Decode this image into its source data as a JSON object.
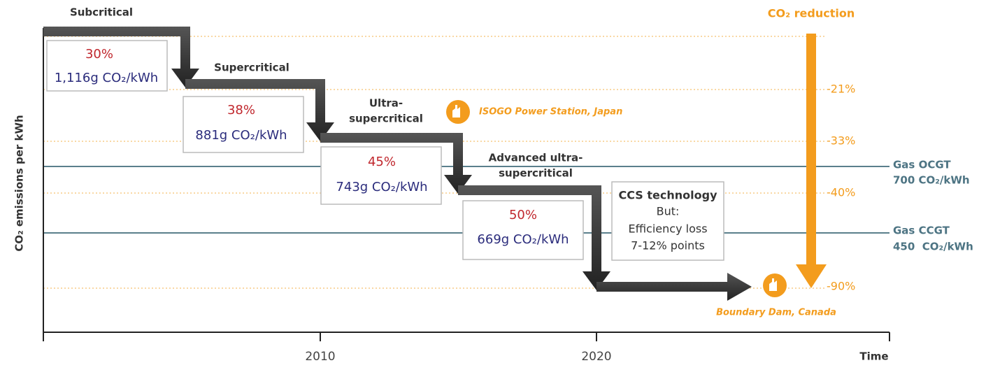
{
  "title": "CO₂ reduction",
  "y_axis": "CO₂ emissions per kWh",
  "x_axis": {
    "ticks": [
      "2010",
      "2020"
    ],
    "label": "Time"
  },
  "stages": [
    {
      "name": [
        "Subcritical"
      ],
      "efficiency": "30%",
      "emission": "1,116g CO₂/kWh"
    },
    {
      "name": [
        "Supercritical"
      ],
      "efficiency": "38%",
      "emission": "881g CO₂/kWh"
    },
    {
      "name": [
        "Ultra-",
        "supercritical"
      ],
      "efficiency": "45%",
      "emission": "743g CO₂/kWh"
    },
    {
      "name": [
        "Advanced ultra-",
        "supercritical"
      ],
      "efficiency": "50%",
      "emission": "669g CO₂/kWh"
    }
  ],
  "ccs": [
    "CCS technology",
    "But:",
    "Efficiency loss",
    "7-12% points"
  ],
  "reductions": [
    "-21%",
    "-33%",
    "-40%",
    "-90%"
  ],
  "plants": [
    "ISOGO Power Station, Japan",
    "Boundary Dam, Canada"
  ],
  "gas": [
    {
      "name": "Gas OCGT",
      "value": "700 CO₂/kWh"
    },
    {
      "name": "Gas CCGT",
      "value": "450  CO₂/kWh"
    }
  ]
}
